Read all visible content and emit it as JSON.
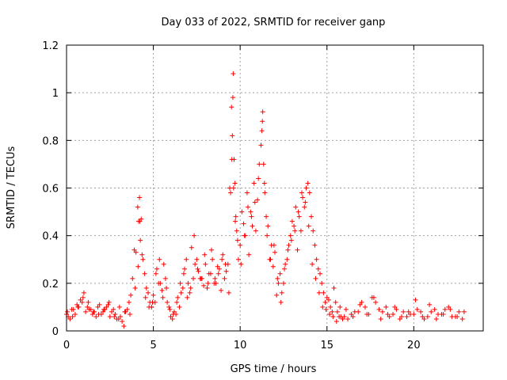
{
  "chart_data": {
    "type": "scatter",
    "title": "Day 033 of 2022, SRMTID for receiver ganp",
    "xlabel": "GPS time / hours",
    "ylabel": "SRMTID / TECUs",
    "xlim": [
      0,
      24
    ],
    "ylim": [
      0,
      1.2
    ],
    "xticks": [
      0,
      5,
      10,
      15,
      20
    ],
    "xtick_labels": [
      "0",
      "5",
      "10",
      "15",
      "20"
    ],
    "yticks": [
      0,
      0.2,
      0.4,
      0.6,
      0.8,
      1.0,
      1.2
    ],
    "ytick_labels": [
      "0",
      "0.2",
      "0.4",
      "0.6",
      "0.8",
      "1",
      "1.2"
    ],
    "grid": true,
    "marker": "plus",
    "color": "#ff0000",
    "series": [
      {
        "name": "SRMTID",
        "x": [
          0.0,
          0.2,
          0.4,
          0.6,
          0.8,
          1.0,
          1.2,
          1.4,
          1.6,
          1.8,
          2.0,
          2.2,
          2.4,
          2.6,
          2.8,
          3.0,
          3.2,
          3.4,
          3.6,
          3.8,
          4.0,
          4.1,
          4.2,
          4.3,
          4.4,
          4.6,
          4.8,
          5.0,
          5.2,
          5.4,
          5.6,
          5.8,
          6.0,
          6.2,
          6.4,
          6.6,
          6.8,
          7.0,
          7.2,
          7.4,
          7.6,
          7.8,
          8.0,
          8.2,
          8.4,
          8.6,
          8.8,
          9.0,
          9.2,
          9.4,
          9.5,
          9.6,
          9.7,
          9.8,
          10.0,
          10.2,
          10.4,
          10.6,
          10.8,
          11.0,
          11.2,
          11.3,
          11.4,
          11.6,
          11.8,
          12.0,
          12.2,
          12.4,
          12.6,
          12.8,
          13.0,
          13.2,
          13.4,
          13.6,
          13.8,
          14.0,
          14.2,
          14.4,
          14.6,
          14.8,
          15.0,
          15.2,
          15.4,
          15.6,
          15.8,
          16.0,
          16.4,
          16.8,
          17.2,
          17.6,
          18.0,
          18.4,
          18.8,
          19.2,
          19.6,
          20.0,
          20.4,
          20.8,
          21.2,
          21.6,
          22.0,
          22.4,
          22.8,
          0.1,
          0.3,
          0.5,
          0.7,
          0.9,
          1.1,
          1.3,
          1.5,
          1.7,
          1.9,
          2.1,
          2.3,
          2.5,
          2.7,
          2.9,
          3.1,
          3.3,
          3.5,
          3.7,
          3.9,
          4.15,
          4.25,
          4.5,
          4.7,
          4.9,
          5.1,
          5.3,
          5.5,
          5.7,
          5.9,
          6.1,
          6.3,
          6.5,
          6.7,
          6.9,
          7.1,
          7.3,
          7.5,
          7.7,
          7.9,
          8.1,
          8.3,
          8.5,
          8.7,
          8.9,
          9.1,
          9.3,
          9.45,
          9.55,
          9.65,
          9.75,
          9.9,
          10.1,
          10.3,
          10.5,
          10.7,
          10.9,
          11.1,
          11.25,
          11.35,
          11.5,
          11.7,
          11.9,
          12.1,
          12.3,
          12.5,
          12.7,
          12.9,
          13.1,
          13.3,
          13.5,
          13.7,
          13.9,
          14.1,
          14.3,
          14.5,
          14.7,
          14.9,
          15.1,
          15.3,
          15.5,
          15.7,
          15.9,
          16.2,
          16.6,
          17.0,
          17.4,
          17.8,
          18.2,
          18.6,
          19.0,
          19.4,
          19.8,
          20.2,
          20.6,
          21.0,
          21.4,
          21.8,
          22.2,
          22.6,
          0.05,
          0.35,
          0.65,
          0.95,
          1.25,
          1.55,
          1.85,
          2.15,
          2.45,
          2.75,
          3.05,
          3.35,
          3.65,
          3.95,
          4.12,
          4.22,
          4.35,
          4.55,
          4.75,
          4.95,
          5.15,
          5.35,
          5.55,
          5.75,
          5.95,
          6.15,
          6.35,
          6.55,
          6.75,
          6.95,
          7.15,
          7.35,
          7.55,
          7.75,
          7.95,
          8.15,
          8.35,
          8.55,
          8.75,
          8.95,
          9.15,
          9.35,
          9.52,
          9.58,
          9.62,
          9.72,
          9.85,
          10.05,
          10.25,
          10.45,
          10.65,
          10.85,
          11.05,
          11.28,
          11.42,
          11.55,
          11.75,
          11.95,
          12.15,
          12.35,
          12.55,
          12.75,
          12.95,
          13.15,
          13.35,
          13.55,
          13.75,
          13.95,
          14.15,
          14.35,
          14.55,
          14.75,
          14.95,
          15.15,
          15.35,
          15.55,
          15.75,
          16.1,
          16.5,
          16.9,
          17.3,
          17.7,
          18.1,
          18.5,
          18.9,
          19.3,
          19.7,
          20.1,
          20.5,
          20.9,
          21.3,
          21.7,
          22.1,
          22.5,
          22.9
        ],
        "y": [
          0.07,
          0.05,
          0.09,
          0.11,
          0.13,
          0.16,
          0.1,
          0.09,
          0.08,
          0.1,
          0.07,
          0.09,
          0.11,
          0.08,
          0.07,
          0.05,
          0.04,
          0.08,
          0.12,
          0.22,
          0.33,
          0.52,
          0.56,
          0.47,
          0.3,
          0.18,
          0.12,
          0.15,
          0.26,
          0.2,
          0.28,
          0.12,
          0.06,
          0.08,
          0.14,
          0.16,
          0.26,
          0.2,
          0.35,
          0.28,
          0.25,
          0.22,
          0.28,
          0.24,
          0.3,
          0.2,
          0.26,
          0.32,
          0.25,
          0.6,
          0.94,
          1.08,
          0.62,
          0.42,
          0.36,
          0.45,
          0.58,
          0.5,
          0.62,
          0.55,
          0.78,
          0.92,
          0.62,
          0.44,
          0.36,
          0.33,
          0.2,
          0.16,
          0.28,
          0.36,
          0.46,
          0.52,
          0.48,
          0.56,
          0.6,
          0.58,
          0.42,
          0.3,
          0.24,
          0.16,
          0.14,
          0.1,
          0.18,
          0.08,
          0.06,
          0.06,
          0.07,
          0.08,
          0.1,
          0.14,
          0.09,
          0.1,
          0.07,
          0.05,
          0.06,
          0.07,
          0.08,
          0.06,
          0.09,
          0.07,
          0.1,
          0.06,
          0.05,
          0.06,
          0.09,
          0.07,
          0.1,
          0.12,
          0.08,
          0.09,
          0.07,
          0.06,
          0.11,
          0.08,
          0.1,
          0.06,
          0.09,
          0.05,
          0.06,
          0.02,
          0.09,
          0.15,
          0.34,
          0.46,
          0.38,
          0.24,
          0.16,
          0.1,
          0.12,
          0.2,
          0.17,
          0.22,
          0.1,
          0.05,
          0.07,
          0.1,
          0.18,
          0.3,
          0.16,
          0.22,
          0.3,
          0.22,
          0.19,
          0.18,
          0.24,
          0.2,
          0.27,
          0.17,
          0.22,
          0.28,
          0.58,
          0.82,
          0.72,
          0.48,
          0.3,
          0.5,
          0.4,
          0.32,
          0.44,
          0.42,
          0.7,
          0.84,
          0.7,
          0.48,
          0.3,
          0.27,
          0.15,
          0.24,
          0.2,
          0.3,
          0.4,
          0.44,
          0.34,
          0.42,
          0.52,
          0.62,
          0.48,
          0.36,
          0.26,
          0.2,
          0.12,
          0.13,
          0.08,
          0.12,
          0.06,
          0.05,
          0.05,
          0.08,
          0.12,
          0.07,
          0.12,
          0.08,
          0.06,
          0.09,
          0.08,
          0.07,
          0.09,
          0.05,
          0.08,
          0.07,
          0.09,
          0.06,
          0.08,
          0.08,
          0.06,
          0.1,
          0.14,
          0.12,
          0.08,
          0.07,
          0.09,
          0.12,
          0.06,
          0.1,
          0.08,
          0.07,
          0.18,
          0.27,
          0.46,
          0.32,
          0.14,
          0.1,
          0.12,
          0.24,
          0.3,
          0.14,
          0.18,
          0.09,
          0.07,
          0.12,
          0.2,
          0.24,
          0.14,
          0.18,
          0.4,
          0.26,
          0.22,
          0.32,
          0.2,
          0.34,
          0.22,
          0.24,
          0.3,
          0.28,
          0.16,
          0.72,
          0.98,
          0.6,
          0.46,
          0.38,
          0.28,
          0.4,
          0.52,
          0.48,
          0.54,
          0.64,
          0.88,
          0.58,
          0.4,
          0.3,
          0.36,
          0.22,
          0.12,
          0.26,
          0.34,
          0.38,
          0.42,
          0.5,
          0.58,
          0.54,
          0.44,
          0.28,
          0.22,
          0.16,
          0.1,
          0.09,
          0.07,
          0.06,
          0.04,
          0.1,
          0.09,
          0.06,
          0.11,
          0.07,
          0.14,
          0.05,
          0.07,
          0.1,
          0.06,
          0.08,
          0.13,
          0.06,
          0.11,
          0.05,
          0.07,
          0.09,
          0.06,
          0.08
        ]
      }
    ]
  }
}
